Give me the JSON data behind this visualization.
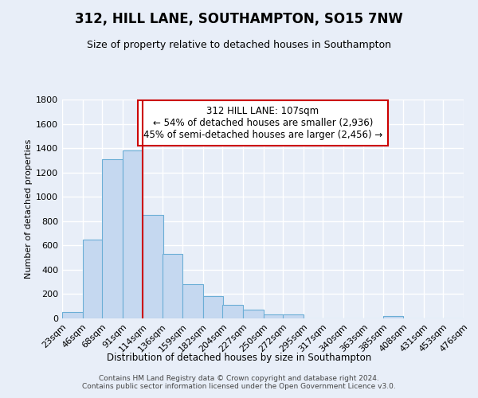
{
  "title": "312, HILL LANE, SOUTHAMPTON, SO15 7NW",
  "subtitle": "Size of property relative to detached houses in Southampton",
  "xlabel": "Distribution of detached houses by size in Southampton",
  "ylabel": "Number of detached properties",
  "bar_color": "#c5d8f0",
  "bar_edge_color": "#6baed6",
  "marker_x": 114,
  "marker_color": "#cc0000",
  "annotation_text": "312 HILL LANE: 107sqm\n← 54% of detached houses are smaller (2,936)\n45% of semi-detached houses are larger (2,456) →",
  "footer_text": "Contains HM Land Registry data © Crown copyright and database right 2024.\nContains public sector information licensed under the Open Government Licence v3.0.",
  "bins_left": [
    23,
    46,
    68,
    91,
    114,
    136,
    159,
    182,
    204,
    227,
    250,
    272,
    295,
    317,
    340,
    363,
    385,
    408,
    431,
    453
  ],
  "values": [
    55,
    645,
    1310,
    1380,
    850,
    530,
    280,
    185,
    110,
    70,
    30,
    30,
    0,
    0,
    0,
    0,
    20,
    0,
    0,
    0
  ],
  "bin_width": 23,
  "xlim": [
    23,
    476
  ],
  "ylim": [
    0,
    1800
  ],
  "yticks": [
    0,
    200,
    400,
    600,
    800,
    1000,
    1200,
    1400,
    1600,
    1800
  ],
  "background_color": "#e8eef8",
  "title_fontsize": 12,
  "subtitle_fontsize": 9,
  "ylabel_fontsize": 8,
  "xlabel_fontsize": 8.5,
  "tick_fontsize": 8,
  "footer_fontsize": 6.5,
  "annotation_fontsize": 8.5
}
